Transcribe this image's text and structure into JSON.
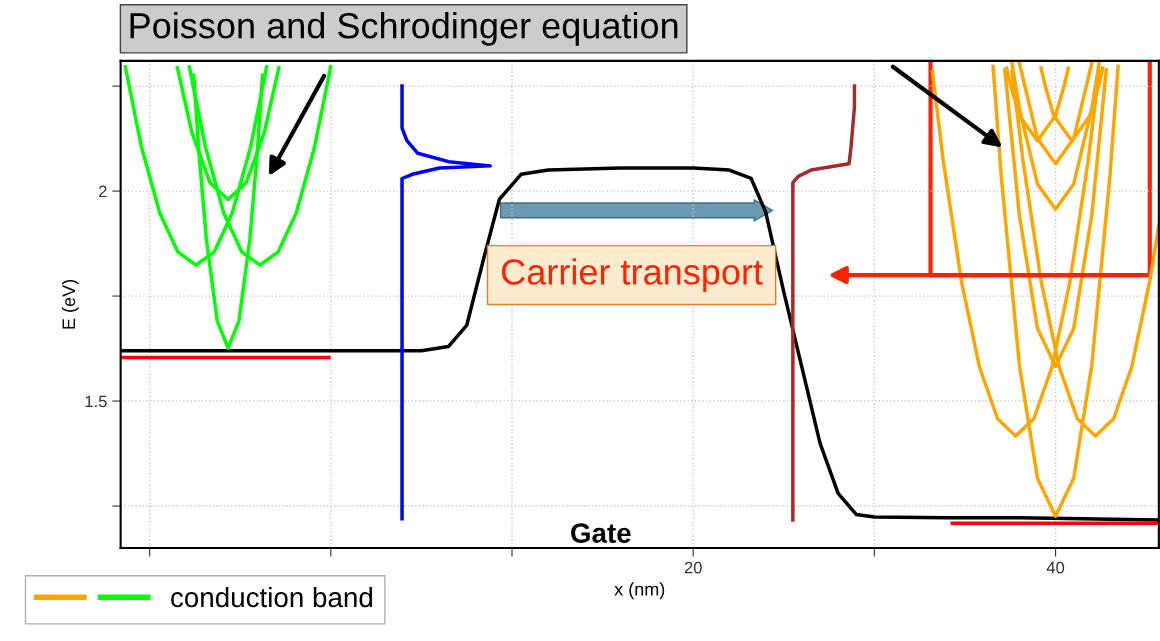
{
  "chart_data": {
    "type": "line",
    "xlabel": "x (nm)",
    "ylabel": "E (eV)",
    "xlim": [
      -11.6,
      45.7
    ],
    "ylim": [
      1.15,
      2.31
    ],
    "xticks": [
      {
        "value": -10,
        "label": null
      },
      {
        "value": 0,
        "label": null
      },
      {
        "value": 10,
        "label": null
      },
      20,
      {
        "value": 30,
        "label": null
      },
      40
    ],
    "yticks": [
      {
        "value": 1.25,
        "label": null
      },
      1.5,
      {
        "value": 1.75,
        "label": null
      },
      2,
      {
        "value": 2.25,
        "label": null
      }
    ],
    "grid": true,
    "legend": "bottom left",
    "annotations": [
      "Poisson and Schrodinger equation",
      "Carrier transport",
      "Gate"
    ],
    "series": [
      {
        "color": "#000000",
        "x": [
          -11.6,
          5,
          6.5,
          7.5,
          8.5,
          9.3,
          10.5,
          12,
          16,
          20,
          22,
          23.2,
          24,
          25,
          26,
          27,
          28,
          29,
          30,
          34,
          38,
          45.7
        ],
        "values": [
          1.62,
          1.62,
          1.63,
          1.68,
          1.85,
          1.98,
          2.04,
          2.05,
          2.055,
          2.055,
          2.05,
          2.03,
          1.95,
          1.76,
          1.58,
          1.4,
          1.28,
          1.23,
          1.224,
          1.222,
          1.222,
          1.217
        ]
      },
      {
        "color": "#ff0000",
        "x": [
          -11.5,
          -0.1
        ],
        "values": [
          1.604,
          1.604
        ]
      },
      {
        "color": "#ff0000",
        "x": [
          34.3,
          45.7
        ],
        "values": [
          1.209,
          1.209
        ]
      },
      {
        "color": "#0000ff",
        "x": [
          3.93,
          3.93,
          4.5,
          6,
          8.8,
          6.5,
          4.8,
          4.2,
          3.93,
          3.93
        ],
        "values": [
          1.22,
          2.03,
          2.04,
          2.055,
          2.06,
          2.07,
          2.09,
          2.12,
          2.15,
          2.25
        ]
      },
      {
        "color": "#a52a2a",
        "x": [
          25.5,
          25.5,
          25.8,
          26.5,
          28.6,
          28.7,
          28.9,
          28.9
        ],
        "values": [
          1.217,
          2.02,
          2.035,
          2.05,
          2.065,
          2.1,
          2.2,
          2.25
        ]
      },
      {
        "name": "conduction band",
        "color": "#00ff00",
        "x": [
          -7.57,
          -7.27,
          -6.87,
          -6.27,
          -5.67,
          -5.07,
          -4.47,
          -4.07,
          -3.77
        ],
        "values": [
          2.276,
          2.087,
          1.885,
          1.691,
          1.626,
          1.691,
          1.885,
          2.087,
          2.276
        ]
      },
      {
        "color": "#00ff00",
        "x": [
          -8.47,
          -7.67,
          -6.67,
          -5.67,
          -4.67,
          -3.67,
          -2.87
        ],
        "values": [
          2.294,
          2.14,
          2.02,
          1.98,
          2.02,
          2.14,
          2.294
        ]
      },
      {
        "color": "#00ff00",
        "x": [
          -11.34,
          -10.44,
          -9.44,
          -8.44,
          -7.44,
          -6.44,
          -5.44,
          -4.44,
          -3.54
        ],
        "values": [
          2.296,
          2.103,
          1.948,
          1.855,
          1.824,
          1.855,
          1.948,
          2.103,
          2.296
        ]
      },
      {
        "color": "#00ff00",
        "x": [
          -7.81,
          -6.91,
          -5.91,
          -4.91,
          -3.91,
          -2.91,
          -1.91,
          -0.91,
          -0.01
        ],
        "values": [
          2.296,
          2.103,
          1.948,
          1.855,
          1.824,
          1.855,
          1.948,
          2.103,
          2.296
        ]
      },
      {
        "color": "#ffa500",
        "x": [
          36.55,
          37,
          38,
          39,
          40,
          41,
          42,
          43,
          43.45
        ],
        "values": [
          2.297,
          2.036,
          1.586,
          1.316,
          1.226,
          1.316,
          1.586,
          2.036,
          2.297
        ]
      },
      {
        "color": "#ffa500",
        "x": [
          37.2,
          38,
          39,
          40,
          41,
          42,
          42.8
        ],
        "values": [
          2.289,
          1.943,
          1.673,
          1.583,
          1.673,
          1.943,
          2.289
        ]
      },
      {
        "color": "#ffa500",
        "x": [
          33.2,
          33.8,
          34.8,
          35.8,
          36.8,
          37.8,
          38.8,
          39.8,
          40.8,
          41.8,
          42.4
        ],
        "values": [
          2.285,
          2.073,
          1.786,
          1.581,
          1.458,
          1.417,
          1.458,
          1.581,
          1.786,
          2.073,
          2.285
        ]
      },
      {
        "color": "#ffa500",
        "x": [
          37.6,
          38.2,
          39.2,
          40.2,
          41.2,
          42.2,
          43.2,
          44.2,
          45.2,
          45.7
        ],
        "values": [
          2.285,
          2.073,
          1.786,
          1.581,
          1.458,
          1.417,
          1.458,
          1.581,
          1.786,
          1.919
        ]
      },
      {
        "color": "#ffa500",
        "x": [
          37.6,
          38,
          39,
          40,
          41,
          42,
          42.4
        ],
        "values": [
          2.303,
          2.197,
          2.017,
          1.957,
          2.017,
          2.197,
          2.303
        ]
      },
      {
        "color": "#ffa500",
        "x": [
          38,
          39,
          40,
          41,
          42
        ],
        "values": [
          2.305,
          2.125,
          2.065,
          2.125,
          2.305
        ]
      },
      {
        "color": "#ffa500",
        "x": [
          37.3,
          37.5,
          38,
          39,
          40,
          40.5,
          40.7
        ],
        "values": [
          2.293,
          2.255,
          2.18,
          2.12,
          2.18,
          2.255,
          2.293
        ]
      },
      {
        "color": "#ffa500",
        "x": [
          39.2,
          39.4,
          39.9,
          40.9,
          41.9,
          42.4,
          42.6
        ],
        "values": [
          2.293,
          2.255,
          2.18,
          2.12,
          2.18,
          2.255,
          2.293
        ]
      }
    ]
  }
}
